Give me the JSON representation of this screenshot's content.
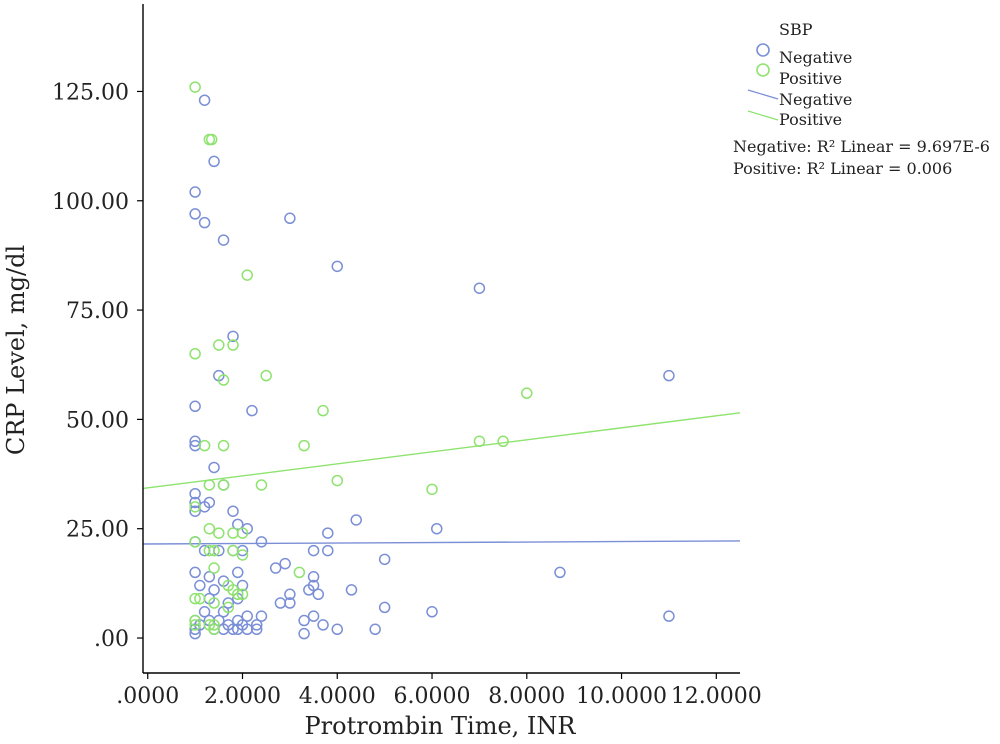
{
  "colors": {
    "negative": "#7b8fd6",
    "positive": "#8ee36e",
    "axis": "#000000",
    "text": "#222222"
  },
  "chart_data": {
    "type": "scatter",
    "xlabel": "Protrombin Time, INR",
    "ylabel": "CRP Level, mg/dl",
    "xlim": [
      -0.1,
      12.5
    ],
    "ylim": [
      -8,
      145
    ],
    "x_ticks": [
      0,
      2,
      4,
      6,
      8,
      10,
      12
    ],
    "x_tick_labels": [
      ".0000",
      "2.0000",
      "4.0000",
      "6.0000",
      "8.0000",
      "10.0000",
      "12.0000"
    ],
    "y_ticks": [
      0,
      25,
      50,
      75,
      100,
      125
    ],
    "y_tick_labels": [
      ".00",
      "25.00",
      "50.00",
      "75.00",
      "100.00",
      "125.00"
    ],
    "legend": {
      "title": "SBP",
      "marker_labels": [
        "Negative",
        "Positive"
      ],
      "line_labels": [
        "Negative",
        "Positive"
      ]
    },
    "fit_annotations": [
      "Negative: R² Linear = 9.697E-6",
      "Positive: R² Linear = 0.006"
    ],
    "fit_lines": [
      {
        "name": "Negative",
        "x": [
          -0.1,
          12.5
        ],
        "y": [
          21.5,
          22.2
        ]
      },
      {
        "name": "Positive",
        "x": [
          -0.1,
          12.5
        ],
        "y": [
          34.2,
          51.5
        ]
      }
    ],
    "series": [
      {
        "name": "Negative",
        "points": [
          [
            1.2,
            123
          ],
          [
            1.4,
            109
          ],
          [
            1.0,
            102
          ],
          [
            1.0,
            97
          ],
          [
            1.2,
            95
          ],
          [
            1.6,
            91
          ],
          [
            3.0,
            96
          ],
          [
            4.0,
            85
          ],
          [
            7.0,
            80
          ],
          [
            11.0,
            60
          ],
          [
            1.8,
            69
          ],
          [
            1.5,
            60
          ],
          [
            1.0,
            53
          ],
          [
            2.2,
            52
          ],
          [
            1.0,
            45
          ],
          [
            1.0,
            44
          ],
          [
            1.4,
            39
          ],
          [
            1.6,
            35
          ],
          [
            1.0,
            33
          ],
          [
            1.3,
            31
          ],
          [
            1.0,
            31
          ],
          [
            1.2,
            30
          ],
          [
            1.8,
            29
          ],
          [
            1.0,
            29
          ],
          [
            1.9,
            26
          ],
          [
            2.1,
            25
          ],
          [
            4.4,
            27
          ],
          [
            6.1,
            25
          ],
          [
            3.8,
            24
          ],
          [
            1.0,
            22
          ],
          [
            2.4,
            22
          ],
          [
            1.2,
            20
          ],
          [
            1.5,
            20
          ],
          [
            1.8,
            20
          ],
          [
            2.0,
            20
          ],
          [
            3.5,
            20
          ],
          [
            3.8,
            20
          ],
          [
            2.9,
            17
          ],
          [
            2.7,
            16
          ],
          [
            5.0,
            18
          ],
          [
            8.7,
            15
          ],
          [
            1.0,
            15
          ],
          [
            1.3,
            14
          ],
          [
            1.9,
            15
          ],
          [
            3.5,
            14
          ],
          [
            1.6,
            13
          ],
          [
            3.5,
            12
          ],
          [
            1.1,
            12
          ],
          [
            1.4,
            11
          ],
          [
            2.0,
            12
          ],
          [
            4.3,
            11
          ],
          [
            3.4,
            11
          ],
          [
            3.0,
            10
          ],
          [
            3.6,
            10
          ],
          [
            1.3,
            9
          ],
          [
            1.9,
            9
          ],
          [
            1.7,
            8
          ],
          [
            2.8,
            8
          ],
          [
            3.0,
            8
          ],
          [
            5.0,
            7
          ],
          [
            6.0,
            6
          ],
          [
            1.2,
            6
          ],
          [
            1.6,
            6
          ],
          [
            11.0,
            5
          ],
          [
            2.1,
            5
          ],
          [
            2.4,
            5
          ],
          [
            3.5,
            5
          ],
          [
            1.0,
            4
          ],
          [
            1.3,
            4
          ],
          [
            1.5,
            4
          ],
          [
            1.9,
            4
          ],
          [
            3.3,
            4
          ],
          [
            1.1,
            3
          ],
          [
            1.7,
            3
          ],
          [
            2.0,
            3
          ],
          [
            2.3,
            3
          ],
          [
            3.7,
            3
          ],
          [
            1.0,
            2
          ],
          [
            1.4,
            2
          ],
          [
            1.8,
            2
          ],
          [
            2.1,
            2
          ],
          [
            2.3,
            2
          ],
          [
            4.0,
            2
          ],
          [
            4.8,
            2
          ],
          [
            1.0,
            1
          ],
          [
            1.6,
            2
          ],
          [
            3.3,
            1
          ],
          [
            1.9,
            2
          ]
        ]
      },
      {
        "name": "Positive",
        "points": [
          [
            1.0,
            126
          ],
          [
            1.3,
            114
          ],
          [
            1.35,
            114
          ],
          [
            2.1,
            83
          ],
          [
            1.5,
            67
          ],
          [
            1.8,
            67
          ],
          [
            1.0,
            65
          ],
          [
            2.5,
            60
          ],
          [
            1.6,
            59
          ],
          [
            8.0,
            56
          ],
          [
            3.7,
            52
          ],
          [
            7.0,
            45
          ],
          [
            7.5,
            45
          ],
          [
            1.2,
            44
          ],
          [
            1.6,
            44
          ],
          [
            3.3,
            44
          ],
          [
            4.0,
            36
          ],
          [
            1.3,
            35
          ],
          [
            1.6,
            35
          ],
          [
            2.4,
            35
          ],
          [
            6.0,
            34
          ],
          [
            1.0,
            30
          ],
          [
            1.3,
            25
          ],
          [
            1.0,
            22
          ],
          [
            1.5,
            24
          ],
          [
            1.8,
            24
          ],
          [
            2.0,
            24
          ],
          [
            1.3,
            20
          ],
          [
            1.4,
            20
          ],
          [
            1.8,
            20
          ],
          [
            2.0,
            19
          ],
          [
            1.4,
            16
          ],
          [
            3.2,
            15
          ],
          [
            1.7,
            12
          ],
          [
            1.8,
            11
          ],
          [
            1.9,
            10
          ],
          [
            2.0,
            10
          ],
          [
            1.0,
            9
          ],
          [
            1.1,
            9
          ],
          [
            1.4,
            8
          ],
          [
            1.7,
            7
          ],
          [
            1.0,
            4
          ],
          [
            1.0,
            3
          ],
          [
            1.4,
            3
          ],
          [
            1.3,
            3
          ],
          [
            1.4,
            2
          ]
        ]
      }
    ]
  }
}
